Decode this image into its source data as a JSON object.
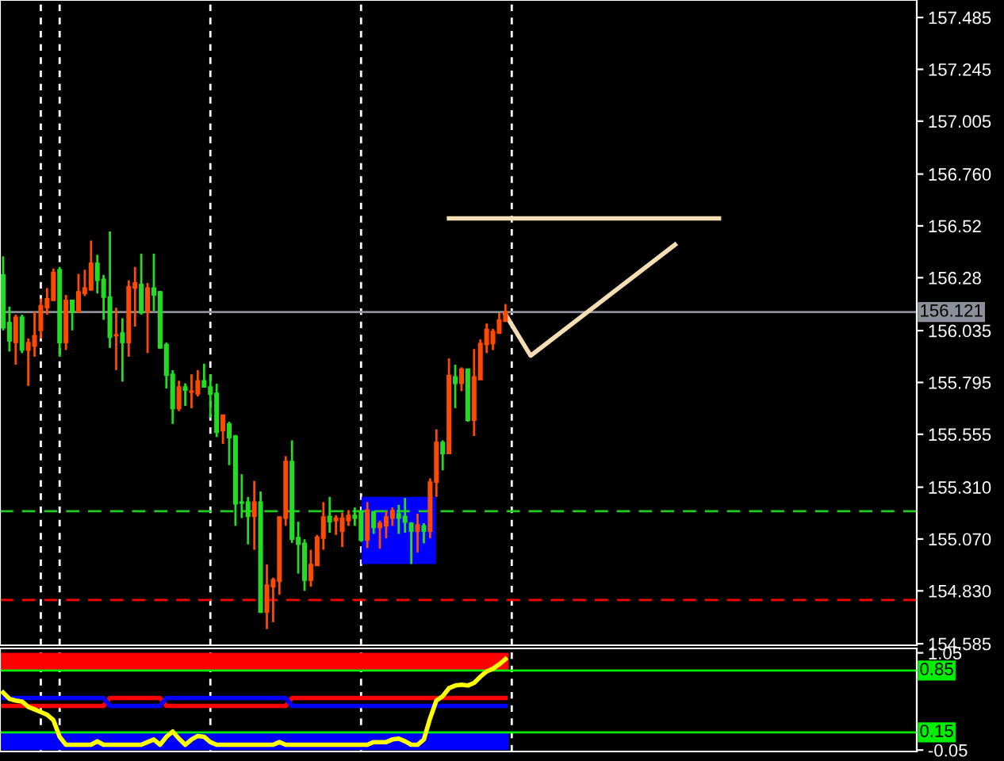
{
  "chart_data": [
    {
      "type": "candlestick",
      "categories": [
        null,
        null,
        null,
        null,
        null,
        null,
        null,
        null,
        null,
        null,
        null,
        null,
        null,
        null,
        null,
        null,
        null,
        null,
        null,
        null,
        null,
        null,
        null,
        null,
        null,
        null,
        null,
        null,
        null,
        null,
        null,
        null,
        null,
        null,
        null,
        null,
        null,
        null,
        null,
        null,
        null,
        null,
        null,
        null,
        null,
        null,
        null,
        null,
        null,
        null,
        null,
        null,
        null,
        null,
        null,
        null,
        null,
        null,
        null,
        null,
        null,
        null,
        null,
        null,
        null,
        null,
        null,
        null,
        null,
        null,
        null,
        null,
        null,
        null,
        null,
        null,
        null,
        null,
        null,
        null,
        null,
        null,
        null,
        null,
        null,
        null,
        null,
        null,
        null,
        null,
        null,
        null,
        null,
        null,
        null,
        null,
        null,
        null,
        null,
        null,
        null,
        null,
        null,
        null,
        null,
        null,
        null,
        null,
        null,
        null,
        null,
        null,
        null,
        null,
        null,
        null,
        null,
        null,
        null,
        null,
        null,
        null,
        null,
        null,
        null,
        null,
        null,
        null,
        null,
        null,
        null,
        null,
        null,
        null,
        null,
        null,
        null,
        null,
        null,
        null,
        null,
        null,
        null,
        null,
        null,
        null
      ],
      "ohlc": [
        [
          156.293,
          156.379,
          156.036,
          156.048
        ],
        [
          156.073,
          156.146,
          155.938,
          155.987
        ],
        [
          155.98,
          156.109,
          155.877,
          156.097
        ],
        [
          156.097,
          156.109,
          155.931,
          155.945
        ],
        [
          155.945,
          155.999,
          155.779,
          155.98
        ],
        [
          155.963,
          156.122,
          155.914,
          156.011
        ],
        [
          156.036,
          156.183,
          155.999,
          156.151
        ],
        [
          156.141,
          156.232,
          156.109,
          156.183
        ],
        [
          156.175,
          156.322,
          156.171,
          156.305
        ],
        [
          156.317,
          156.33,
          155.914,
          155.98
        ],
        [
          155.98,
          156.2,
          155.945,
          156.175
        ],
        [
          156.175,
          156.175,
          156.036,
          156.122
        ],
        [
          156.122,
          156.298,
          156.122,
          156.215
        ],
        [
          156.207,
          156.317,
          156.195,
          156.232
        ],
        [
          156.224,
          156.452,
          156.219,
          156.347
        ],
        [
          156.347,
          156.386,
          156.207,
          156.268
        ],
        [
          156.273,
          156.293,
          156.085,
          156.19
        ],
        [
          156.19,
          156.494,
          155.955,
          156.004
        ],
        [
          156.011,
          156.141,
          155.852,
          156.016
        ],
        [
          156.024,
          156.092,
          155.799,
          155.98
        ],
        [
          155.98,
          156.268,
          155.914,
          156.239
        ],
        [
          156.232,
          156.33,
          156.053,
          156.256
        ],
        [
          156.249,
          156.391,
          156.109,
          156.117
        ],
        [
          156.122,
          156.256,
          155.931,
          156.232
        ],
        [
          156.232,
          156.391,
          156.126,
          156.2
        ],
        [
          156.215,
          156.219,
          155.95,
          155.955
        ],
        [
          155.97,
          155.98,
          155.767,
          155.828
        ],
        [
          155.833,
          155.852,
          155.603,
          155.674
        ],
        [
          155.674,
          155.803,
          155.662,
          155.774
        ],
        [
          155.774,
          155.791,
          155.686,
          155.759
        ],
        [
          155.75,
          155.833,
          155.676,
          155.755
        ],
        [
          155.742,
          155.852,
          155.73,
          155.803
        ],
        [
          155.803,
          155.882,
          155.774,
          155.774
        ],
        [
          155.774,
          155.833,
          155.632,
          155.74
        ],
        [
          155.745,
          155.789,
          155.542,
          155.564
        ],
        [
          155.571,
          155.644,
          155.51,
          155.644
        ],
        [
          155.603,
          155.613,
          155.412,
          155.539
        ],
        [
          155.547,
          155.552,
          155.131,
          155.233
        ],
        [
          155.241,
          155.37,
          155.167,
          155.236
        ],
        [
          155.241,
          155.265,
          155.045,
          155.175
        ],
        [
          155.175,
          155.339,
          155.02,
          155.241
        ],
        [
          155.241,
          155.29,
          154.727,
          154.732
        ],
        [
          154.732,
          154.952,
          154.653,
          154.857
        ],
        [
          154.849,
          154.891,
          154.685,
          154.881
        ],
        [
          154.874,
          155.172,
          154.812,
          155.172
        ],
        [
          155.167,
          155.454,
          155.131,
          155.429
        ],
        [
          155.429,
          155.527,
          155.052,
          155.069
        ],
        [
          155.077,
          155.15,
          154.91,
          155.045
        ],
        [
          155.05,
          155.069,
          154.83,
          154.879
        ],
        [
          154.879,
          155.02,
          154.849,
          154.952
        ],
        [
          154.947,
          155.089,
          154.947,
          155.079
        ],
        [
          155.074,
          155.241,
          155.02,
          155.172
        ],
        [
          155.175,
          155.265,
          155.099,
          155.15
        ],
        [
          155.155,
          155.18,
          155.089,
          155.167
        ],
        [
          155.106,
          155.192,
          155.033,
          155.167
        ],
        [
          155.155,
          155.204,
          155.131,
          155.18
        ],
        [
          155.18,
          155.216,
          155.131,
          155.167
        ],
        [
          155.197,
          155.197,
          155.057,
          155.065
        ],
        [
          155.065,
          155.241,
          155.028,
          155.204
        ],
        [
          155.197,
          155.197,
          155.094,
          155.123
        ],
        [
          155.123,
          155.155,
          155.025,
          155.143
        ],
        [
          155.131,
          155.199,
          155.074,
          155.172
        ],
        [
          155.167,
          155.216,
          155.131,
          155.202
        ],
        [
          155.187,
          155.228,
          155.094,
          155.167
        ],
        [
          155.175,
          155.26,
          155.099,
          155.148
        ],
        [
          155.143,
          155.148,
          154.954,
          155.106
        ],
        [
          155.106,
          155.187,
          155.008,
          155.136
        ],
        [
          155.131,
          155.143,
          155.05,
          155.106
        ],
        [
          155.106,
          155.351,
          155.074,
          155.334
        ],
        [
          155.334,
          155.578,
          155.265,
          155.517
        ],
        [
          155.517,
          155.527,
          155.388,
          155.466
        ],
        [
          155.466,
          155.906,
          155.466,
          155.828
        ],
        [
          155.821,
          155.877,
          155.676,
          155.791
        ],
        [
          155.791,
          155.865,
          155.755,
          155.857
        ],
        [
          155.857,
          155.857,
          155.613,
          155.62
        ],
        [
          155.62,
          155.95,
          155.547,
          155.821
        ],
        [
          155.808,
          155.994,
          155.808,
          155.975
        ],
        [
          155.97,
          156.068,
          155.931,
          156.041
        ],
        [
          155.975,
          156.043,
          155.945,
          156.031
        ],
        [
          156.024,
          156.117,
          156.019,
          156.085
        ],
        [
          156.078,
          156.158,
          156.078,
          156.121
        ],
        null,
        null,
        null,
        null,
        null,
        null,
        null,
        null,
        null,
        null,
        null,
        null,
        null,
        null,
        null,
        null,
        null,
        null,
        null,
        null,
        null,
        null,
        null,
        null,
        null,
        null,
        null,
        null,
        null,
        null,
        null,
        null,
        null,
        null,
        null,
        null,
        null,
        null,
        null,
        null,
        null,
        null,
        null,
        null,
        null,
        null,
        null,
        null,
        null,
        null,
        null,
        null,
        null,
        null,
        null,
        null,
        null,
        null,
        null,
        null,
        null,
        null,
        null,
        null,
        null
      ],
      "colors": [
        "#22dd22",
        "#22dd22",
        "#ff4a00",
        "#22dd22",
        "#ff4a00",
        "#ff4a00",
        "#ff4a00",
        "#ff4a00",
        "#ff4a00",
        "#22dd22",
        "#ff4a00",
        "#22dd22",
        "#ff4a00",
        "#ff4a00",
        "#ff4a00",
        "#22dd22",
        "#22dd22",
        "#22dd22",
        "#ff4a00",
        "#22dd22",
        "#ff4a00",
        "#ff4a00",
        "#22dd22",
        "#ff4a00",
        "#22dd22",
        "#22dd22",
        "#22dd22",
        "#22dd22",
        "#ff4a00",
        "#22dd22",
        "#ff4a00",
        "#ff4a00",
        "#22dd22",
        "#22dd22",
        "#22dd22",
        "#ff4a00",
        "#22dd22",
        "#22dd22",
        "#22dd22",
        "#22dd22",
        "#ff4a00",
        "#22dd22",
        "#ff4a00",
        "#ff4a00",
        "#ff4a00",
        "#ff4a00",
        "#22dd22",
        "#22dd22",
        "#22dd22",
        "#ff4a00",
        "#ff4a00",
        "#ff4a00",
        "#22dd22",
        "#ff4a00",
        "#ff4a00",
        "#ff4a00",
        "#22dd22",
        "#22dd22",
        "#ff4a00",
        "#22dd22",
        "#ff4a00",
        "#ff4a00",
        "#ff4a00",
        "#22dd22",
        "#22dd22",
        "#22dd22",
        "#ff4a00",
        "#22dd22",
        "#ff4a00",
        "#ff4a00",
        "#22dd22",
        "#ff4a00",
        "#22dd22",
        "#ff4a00",
        "#22dd22",
        "#ff4a00",
        "#ff4a00",
        "#ff4a00",
        "#ff4a00",
        "#ff4a00",
        "#ff4a00",
        null,
        null,
        null,
        null,
        null,
        null,
        null,
        null,
        null,
        null,
        null,
        null,
        null,
        null,
        null,
        null,
        null,
        null,
        null,
        null,
        null,
        null,
        null,
        null,
        null,
        null,
        null,
        null,
        null,
        null,
        null,
        null,
        null,
        null,
        null,
        null,
        null,
        null,
        null,
        null,
        null,
        null,
        null,
        null,
        null,
        null,
        null,
        null,
        null,
        null,
        null,
        null,
        null,
        null,
        null,
        null,
        null,
        null,
        null,
        null,
        null,
        null,
        null,
        null,
        null
      ],
      "series": [
        {
          "type": "line",
          "color": "#f5deb3",
          "values": [
            null,
            null,
            null,
            null,
            null,
            null,
            null,
            null,
            null,
            null,
            null,
            null,
            null,
            null,
            null,
            null,
            null,
            null,
            null,
            null,
            null,
            null,
            null,
            null,
            null,
            null,
            null,
            null,
            null,
            null,
            null,
            null,
            null,
            null,
            null,
            null,
            null,
            null,
            null,
            null,
            null,
            null,
            null,
            null,
            null,
            null,
            null,
            null,
            null,
            null,
            null,
            null,
            null,
            null,
            null,
            null,
            null,
            null,
            null,
            null,
            null,
            null,
            null,
            null,
            null,
            null,
            null,
            null,
            null,
            null,
            null,
            156.555,
            null,
            null,
            null,
            null,
            null,
            null,
            null,
            null,
            null,
            null,
            null,
            null,
            null,
            null,
            null,
            null,
            null,
            null,
            null,
            null,
            null,
            null,
            null,
            null,
            null,
            null,
            null,
            null,
            null,
            null,
            null,
            null,
            null,
            null,
            null,
            null,
            null,
            null,
            null,
            null,
            null,
            null,
            156.555,
            null,
            null,
            null,
            null,
            null,
            null,
            null,
            null,
            null,
            null,
            null,
            null,
            null,
            null,
            null,
            null,
            null,
            null,
            null,
            null,
            null,
            null,
            null,
            null,
            null,
            null,
            null,
            null,
            null,
            null,
            null
          ]
        },
        {
          "type": "line",
          "color": "#f5deb3",
          "values": [
            null,
            null,
            null,
            null,
            null,
            null,
            null,
            null,
            null,
            null,
            null,
            null,
            null,
            null,
            null,
            null,
            null,
            null,
            null,
            null,
            null,
            null,
            null,
            null,
            null,
            null,
            null,
            null,
            null,
            null,
            null,
            null,
            null,
            null,
            null,
            null,
            null,
            null,
            null,
            null,
            null,
            null,
            null,
            null,
            null,
            null,
            null,
            null,
            null,
            null,
            null,
            null,
            null,
            null,
            null,
            null,
            null,
            null,
            null,
            null,
            null,
            null,
            null,
            null,
            null,
            null,
            null,
            null,
            null,
            null,
            null,
            null,
            null,
            null,
            null,
            null,
            null,
            null,
            null,
            null,
            156.11,
            null,
            null,
            null,
            155.919,
            null,
            null,
            null,
            null,
            null,
            null,
            null,
            null,
            null,
            null,
            null,
            null,
            null,
            null,
            null,
            null,
            null,
            null,
            null,
            null,
            null,
            null,
            156.433,
            null,
            null,
            null,
            null,
            null,
            null,
            null,
            null,
            null,
            null,
            null,
            null,
            null,
            null,
            null,
            null,
            null,
            null,
            null,
            null,
            null,
            null,
            null,
            null,
            null,
            null,
            null,
            null,
            null,
            null,
            null,
            null,
            null,
            null,
            null,
            null,
            null,
            null
          ]
        }
      ],
      "ylim": [
        154.578,
        157.566
      ],
      "yticks": [
        157.485,
        157.245,
        157.005,
        {
          "value": 156.76,
          "label": "156.760"
        },
        156.52,
        156.28,
        156.035,
        155.795,
        155.555,
        {
          "value": 155.31,
          "label": "155.310"
        },
        {
          "value": 155.07,
          "label": "155.070"
        },
        {
          "value": 154.83,
          "label": "154.830"
        },
        154.585
      ],
      "ref_lines": [
        {
          "axis": "y",
          "value": 156.121,
          "label": "156.121",
          "color": "#8a8f99",
          "line_style": "solid"
        },
        {
          "axis": "y",
          "value": 155.199,
          "color": "#22cc22",
          "line_style": "dashed"
        },
        {
          "axis": "y",
          "value": 154.788,
          "color": "#ff0000",
          "line_style": "dashed"
        }
      ],
      "tick_labels": "y",
      "grid": false,
      "legend": false
    },
    {
      "type": "line",
      "categories": [
        null,
        null,
        null,
        null,
        null,
        null,
        null,
        null,
        null,
        null,
        null,
        null,
        null,
        null,
        null,
        null,
        null,
        null,
        null,
        null,
        null,
        null,
        null,
        null,
        null,
        null,
        null,
        null,
        null,
        null,
        null,
        null,
        null,
        null,
        null,
        null,
        null,
        null,
        null,
        null,
        null,
        null,
        null,
        null,
        null,
        null,
        null,
        null,
        null,
        null,
        null,
        null,
        null,
        null,
        null,
        null,
        null,
        null,
        null,
        null,
        null,
        null,
        null,
        null,
        null,
        null,
        null,
        null,
        null,
        null,
        null,
        null,
        null,
        null,
        null,
        null,
        null,
        null,
        null,
        null,
        null,
        null,
        null,
        null,
        null,
        null,
        null,
        null,
        null,
        null,
        null,
        null,
        null,
        null,
        null,
        null,
        null,
        null,
        null,
        null,
        null,
        null,
        null,
        null,
        null,
        null,
        null,
        null,
        null,
        null,
        null,
        null,
        null,
        null,
        null,
        null,
        null,
        null,
        null,
        null,
        null,
        null,
        null,
        null,
        null,
        null,
        null,
        null,
        null,
        null,
        null,
        null,
        null,
        null,
        null,
        null,
        null,
        null,
        null,
        null,
        null,
        null,
        null,
        null,
        null,
        null
      ],
      "series": [
        {
          "color": "#ff0000",
          "values": [
            0.45,
            0.45,
            0.45,
            0.45,
            0.45,
            0.45,
            0.45,
            0.45,
            0.45,
            0.45,
            0.45,
            0.45,
            0.45,
            0.45,
            0.45,
            0.45,
            0.45,
            0.54,
            0.54,
            0.54,
            0.54,
            0.54,
            0.54,
            0.54,
            0.54,
            0.54,
            0.45,
            0.45,
            0.45,
            0.45,
            0.45,
            0.45,
            0.45,
            0.45,
            0.45,
            0.45,
            0.45,
            0.45,
            0.45,
            0.45,
            0.45,
            0.45,
            0.45,
            0.45,
            0.45,
            0.45,
            0.54,
            0.54,
            0.54,
            0.54,
            0.54,
            0.54,
            0.54,
            0.54,
            0.54,
            0.54,
            0.54,
            0.54,
            0.54,
            0.54,
            0.54,
            0.54,
            0.54,
            0.54,
            0.54,
            0.54,
            0.54,
            0.54,
            0.54,
            0.54,
            0.54,
            0.54,
            0.54,
            0.54,
            0.54,
            0.54,
            0.54,
            0.54,
            0.54,
            0.54,
            0.54,
            null,
            null,
            null,
            null,
            null,
            null,
            null,
            null,
            null,
            null,
            null,
            null,
            null,
            null,
            null,
            null,
            null,
            null,
            null,
            null,
            null,
            null,
            null,
            null,
            null,
            null,
            null,
            null,
            null,
            null,
            null,
            null,
            null,
            null,
            null,
            null,
            null,
            null,
            null,
            null,
            null,
            null,
            null,
            null,
            null,
            null,
            null,
            null,
            null,
            null,
            null,
            null,
            null,
            null,
            null,
            null,
            null,
            null,
            null,
            null,
            null,
            null,
            null,
            null,
            null
          ]
        },
        {
          "color": "#0000ff",
          "values": [
            0.54,
            0.54,
            0.54,
            0.54,
            0.54,
            0.54,
            0.54,
            0.54,
            0.54,
            0.54,
            0.54,
            0.54,
            0.54,
            0.54,
            0.54,
            0.54,
            0.54,
            0.45,
            0.45,
            0.45,
            0.45,
            0.45,
            0.45,
            0.45,
            0.45,
            0.45,
            0.54,
            0.54,
            0.54,
            0.54,
            0.54,
            0.54,
            0.54,
            0.54,
            0.54,
            0.54,
            0.54,
            0.54,
            0.54,
            0.54,
            0.54,
            0.54,
            0.54,
            0.54,
            0.54,
            0.54,
            0.45,
            0.45,
            0.45,
            0.45,
            0.45,
            0.45,
            0.45,
            0.45,
            0.45,
            0.45,
            0.45,
            0.45,
            0.45,
            0.45,
            0.45,
            0.45,
            0.45,
            0.45,
            0.45,
            0.45,
            0.45,
            0.45,
            0.45,
            0.45,
            0.45,
            0.45,
            0.45,
            0.45,
            0.45,
            0.45,
            0.45,
            0.45,
            0.45,
            0.45,
            0.45,
            null,
            null,
            null,
            null,
            null,
            null,
            null,
            null,
            null,
            null,
            null,
            null,
            null,
            null,
            null,
            null,
            null,
            null,
            null,
            null,
            null,
            null,
            null,
            null,
            null,
            null,
            null,
            null,
            null,
            null,
            null,
            null,
            null,
            null,
            null,
            null,
            null,
            null,
            null,
            null,
            null,
            null,
            null,
            null,
            null,
            null,
            null,
            null,
            null,
            null,
            null,
            null,
            null,
            null,
            null,
            null,
            null,
            null,
            null,
            null,
            null,
            null,
            null,
            null,
            null
          ]
        },
        {
          "color": "#ffff00",
          "values": [
            0.6,
            0.53,
            0.51,
            0.5,
            0.44,
            0.41,
            0.38,
            0.35,
            0.29,
            0.1,
            0.01,
            0.01,
            0.01,
            0.01,
            0.01,
            0.05,
            0.01,
            0.01,
            0.01,
            0.01,
            0.01,
            0.01,
            0.01,
            0.04,
            0.07,
            0.01,
            0.1,
            0.16,
            0.08,
            0.01,
            0.07,
            0.11,
            0.1,
            0.04,
            0.01,
            0.01,
            0.01,
            0.01,
            0.01,
            0.01,
            0.01,
            0.01,
            0.01,
            0.01,
            0.04,
            0.01,
            0.01,
            0.01,
            0.01,
            0.01,
            0.01,
            0.01,
            0.01,
            0.01,
            0.01,
            0.01,
            0.01,
            0.01,
            0.01,
            0.04,
            0.04,
            0.04,
            0.07,
            0.08,
            0.05,
            0.01,
            0.01,
            0.07,
            0.31,
            0.51,
            0.56,
            0.65,
            0.68,
            0.69,
            0.68,
            0.71,
            0.78,
            0.84,
            0.87,
            0.92,
            0.98,
            null,
            null,
            null,
            null,
            null,
            null,
            null,
            null,
            null,
            null,
            null,
            null,
            null,
            null,
            null,
            null,
            null,
            null,
            null,
            null,
            null,
            null,
            null,
            null,
            null,
            null,
            null,
            null,
            null,
            null,
            null,
            null,
            null,
            null,
            null,
            null,
            null,
            null,
            null,
            null,
            null,
            null,
            null,
            null,
            null,
            null,
            null,
            null,
            null,
            null,
            null,
            null,
            null,
            null,
            null,
            null,
            null,
            null,
            null,
            null,
            null,
            null,
            null,
            null,
            null
          ]
        }
      ],
      "ylim": [
        -0.066,
        1.1
      ],
      "yticks": [
        1.05,
        -0.05
      ],
      "bands": [
        {
          "axis": "y",
          "from": 0.85,
          "to": 1.05,
          "color": "#ff0000"
        },
        {
          "axis": "y",
          "from": -0.05,
          "to": 0.15,
          "color": "#0000ff"
        }
      ],
      "ref_lines": [
        {
          "axis": "y",
          "value": 0.85,
          "label": "0.85",
          "color": "#00ee00",
          "line_style": "solid"
        },
        {
          "axis": "y",
          "value": 0.15,
          "label": "0.15",
          "color": "#00ee00",
          "line_style": "solid"
        }
      ],
      "tick_labels": "y",
      "grid": false,
      "legend": false
    }
  ]
}
